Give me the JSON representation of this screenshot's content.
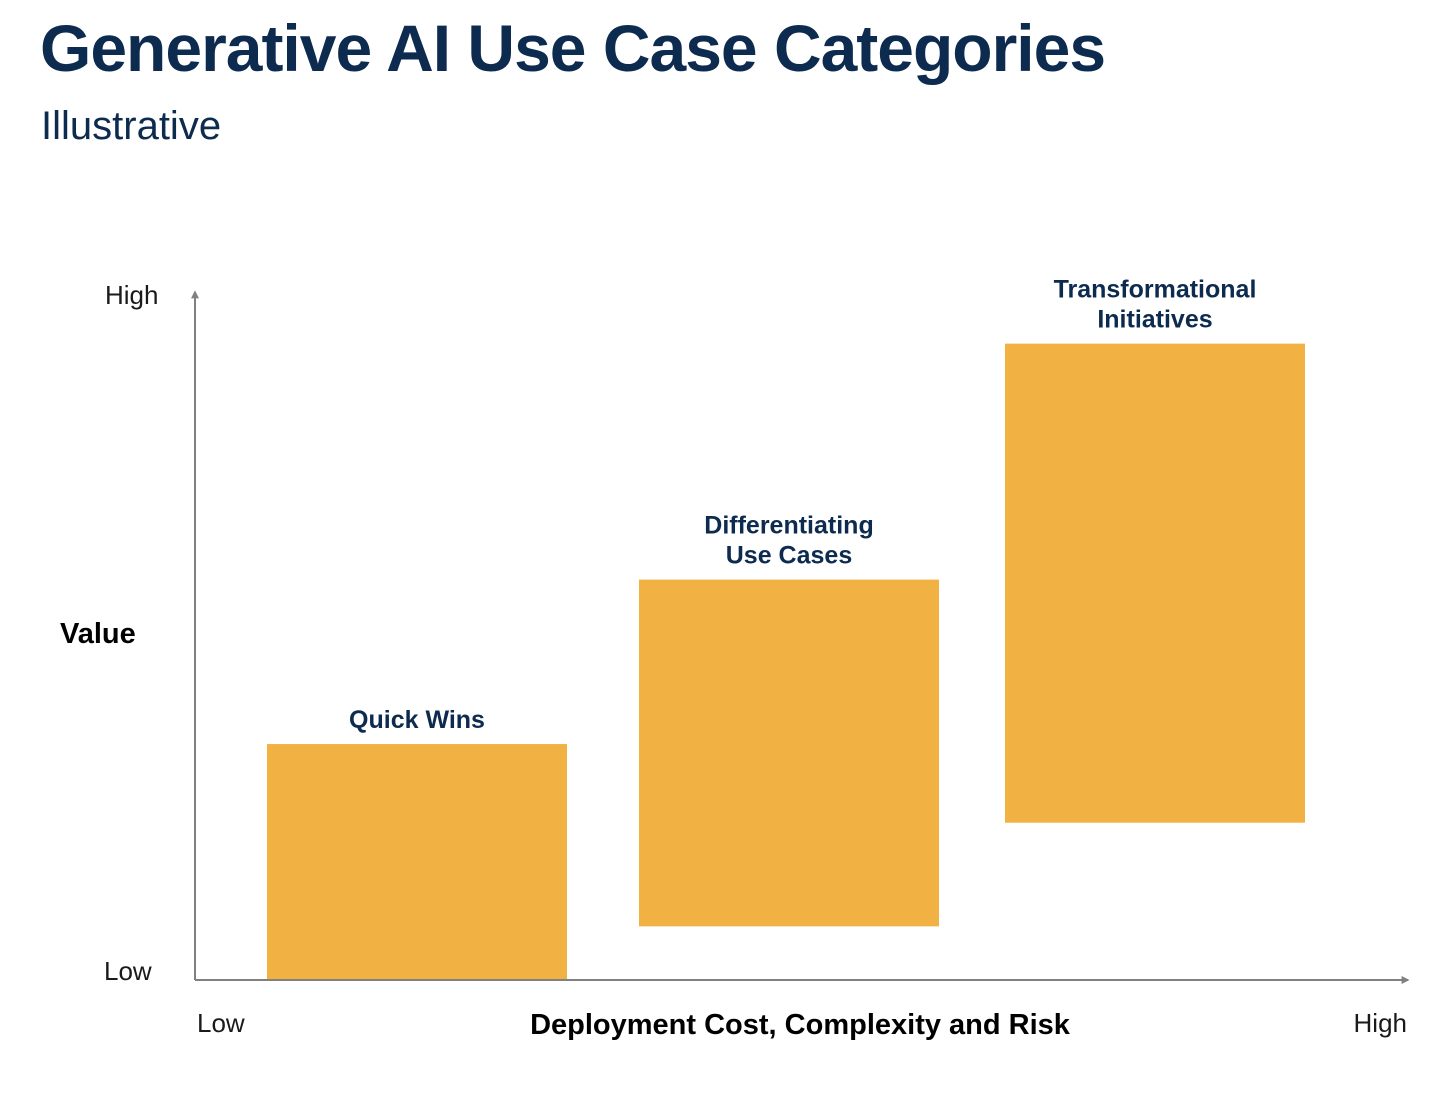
{
  "chart_data": {
    "type": "bar",
    "title": "Generative AI Use Case Categories",
    "subtitle": "Illustrative",
    "xlabel": "Deployment Cost, Complexity and Risk",
    "ylabel": "Value",
    "x_low_label": "Low",
    "x_high_label": "High",
    "y_low_label": "Low",
    "y_high_label": "High",
    "xlim": [
      0,
      100
    ],
    "ylim": [
      0,
      100
    ],
    "grid": false,
    "bar_color": "#f2b143",
    "axis_color": "#808080",
    "text_color": "#0d2a4f",
    "bars": [
      {
        "label": [
          "Quick Wins"
        ],
        "x_start": 6,
        "x_end": 31,
        "y_bottom": 0,
        "y_top": 33
      },
      {
        "label": [
          "Differentiating",
          "Use Cases"
        ],
        "x_start": 37,
        "x_end": 62,
        "y_bottom": 7.5,
        "y_top": 56
      },
      {
        "label": [
          "Transformational",
          "Initiatives"
        ],
        "x_start": 67.5,
        "x_end": 92.5,
        "y_bottom": 22,
        "y_top": 89
      }
    ]
  }
}
